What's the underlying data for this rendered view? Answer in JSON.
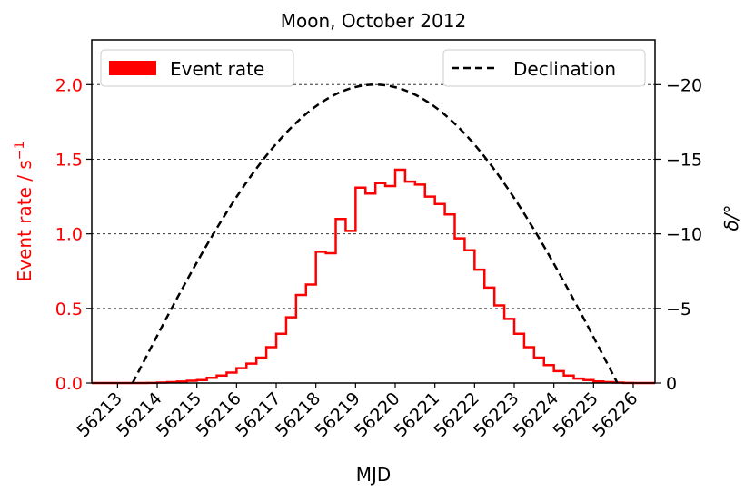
{
  "chart_data": {
    "type": "histogram-line",
    "title": "Moon, October 2012",
    "xlabel": "MJD",
    "ylabel_left": "Event rate / s",
    "ylabel_left_sup": "−1",
    "ylabel_right": "δ/°",
    "xlim": [
      56212.35,
      56226.55
    ],
    "ylim_left": [
      0,
      2.3
    ],
    "ylim_right": [
      0,
      -23
    ],
    "x_ticks": [
      56213,
      56214,
      56215,
      56216,
      56217,
      56218,
      56219,
      56220,
      56221,
      56222,
      56223,
      56224,
      56225,
      56226
    ],
    "y_ticks_left": [
      "0.0",
      "0.5",
      "1.0",
      "1.5",
      "2.0"
    ],
    "y_ticks_right": [
      "0",
      "−5",
      "−10",
      "−15",
      "−20"
    ],
    "grid": "horizontal dashed",
    "colors": {
      "event_rate": "#ff0000",
      "declination": "#000000",
      "left_axis": "#ff0000"
    },
    "series": [
      {
        "name": "Event rate",
        "style": "step",
        "bin_width": 0.25,
        "edges_start": 56213.0,
        "values": [
          0.0,
          0.0,
          0.0,
          0.001,
          0.003,
          0.006,
          0.01,
          0.015,
          0.02,
          0.035,
          0.05,
          0.07,
          0.1,
          0.13,
          0.17,
          0.24,
          0.33,
          0.44,
          0.59,
          0.66,
          0.88,
          0.87,
          1.1,
          1.02,
          1.31,
          1.27,
          1.34,
          1.32,
          1.43,
          1.35,
          1.33,
          1.25,
          1.2,
          1.13,
          0.97,
          0.89,
          0.76,
          0.64,
          0.52,
          0.43,
          0.33,
          0.24,
          0.17,
          0.12,
          0.08,
          0.05,
          0.03,
          0.02,
          0.011,
          0.006,
          0.003,
          0.001,
          0.0
        ]
      },
      {
        "name": "Declination",
        "style": "dashed",
        "x_start": 56213.38,
        "x_end": 56225.6,
        "peak_x": 56219.3,
        "peak_value": -20
      }
    ],
    "legend": [
      {
        "label": "Event rate",
        "placement": "top-left"
      },
      {
        "label": "Declination",
        "placement": "top-right"
      }
    ]
  }
}
